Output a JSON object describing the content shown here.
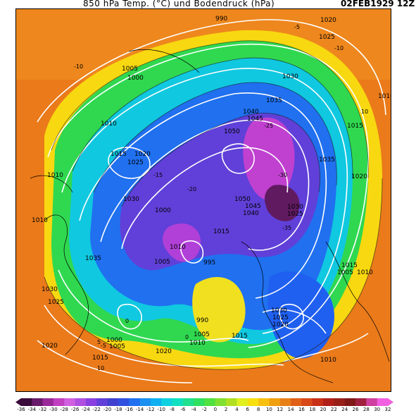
{
  "title": {
    "main": "850 hPa Temp. (°C) und Bodendruck (hPa)",
    "date": "02FEB1929 12Z"
  },
  "map": {
    "isobar_labels": [
      "990",
      "1020",
      "1025",
      "1005",
      "1000",
      "1030",
      "1010",
      "1035",
      "1040",
      "1045",
      "1050",
      "1015",
      "1020",
      "1025",
      "1010",
      "1030",
      "1015",
      "1035",
      "1020",
      "1050",
      "1045",
      "1040",
      "1030",
      "1025",
      "1000",
      "1015",
      "1010",
      "995",
      "1035",
      "1005",
      "1030",
      "1025",
      "1030",
      "1025",
      "1020",
      "990",
      "1005",
      "1010",
      "1015",
      "1020",
      "1000",
      "1005",
      "1015",
      "1020",
      "1010",
      "1015",
      "1005",
      "1010",
      "1010",
      "1010"
    ],
    "temperature_labels": [
      "-5",
      "-10",
      "-15",
      "-20",
      "-25",
      "-30",
      "-35",
      "0",
      "5",
      "10",
      "-10",
      "-5",
      "0",
      "10"
    ]
  },
  "colorbar": {
    "ticks": [
      "-36",
      "-34",
      "-32",
      "-30",
      "-28",
      "-26",
      "-24",
      "-22",
      "-20",
      "-18",
      "-16",
      "-14",
      "-12",
      "-10",
      "-8",
      "-6",
      "-4",
      "-2",
      "0",
      "2",
      "4",
      "6",
      "8",
      "10",
      "12",
      "14",
      "16",
      "18",
      "20",
      "22",
      "24",
      "26",
      "28",
      "30",
      "32"
    ],
    "colors": [
      "#3a0a3a",
      "#6a1a6a",
      "#9a2a9a",
      "#c040c0",
      "#d060e0",
      "#b050e0",
      "#8a40e0",
      "#6040d8",
      "#4040d0",
      "#3050e0",
      "#2070f0",
      "#1a90f0",
      "#10b0f0",
      "#10d0e0",
      "#10e0c0",
      "#20e090",
      "#30e060",
      "#50e040",
      "#80e030",
      "#b0e020",
      "#e0f020",
      "#f8e010",
      "#f8c010",
      "#f0a010",
      "#e88018",
      "#e06018",
      "#d84818",
      "#c83018",
      "#b02018",
      "#982018",
      "#801818",
      "#a02040",
      "#d040a0",
      "#f060e0"
    ]
  }
}
